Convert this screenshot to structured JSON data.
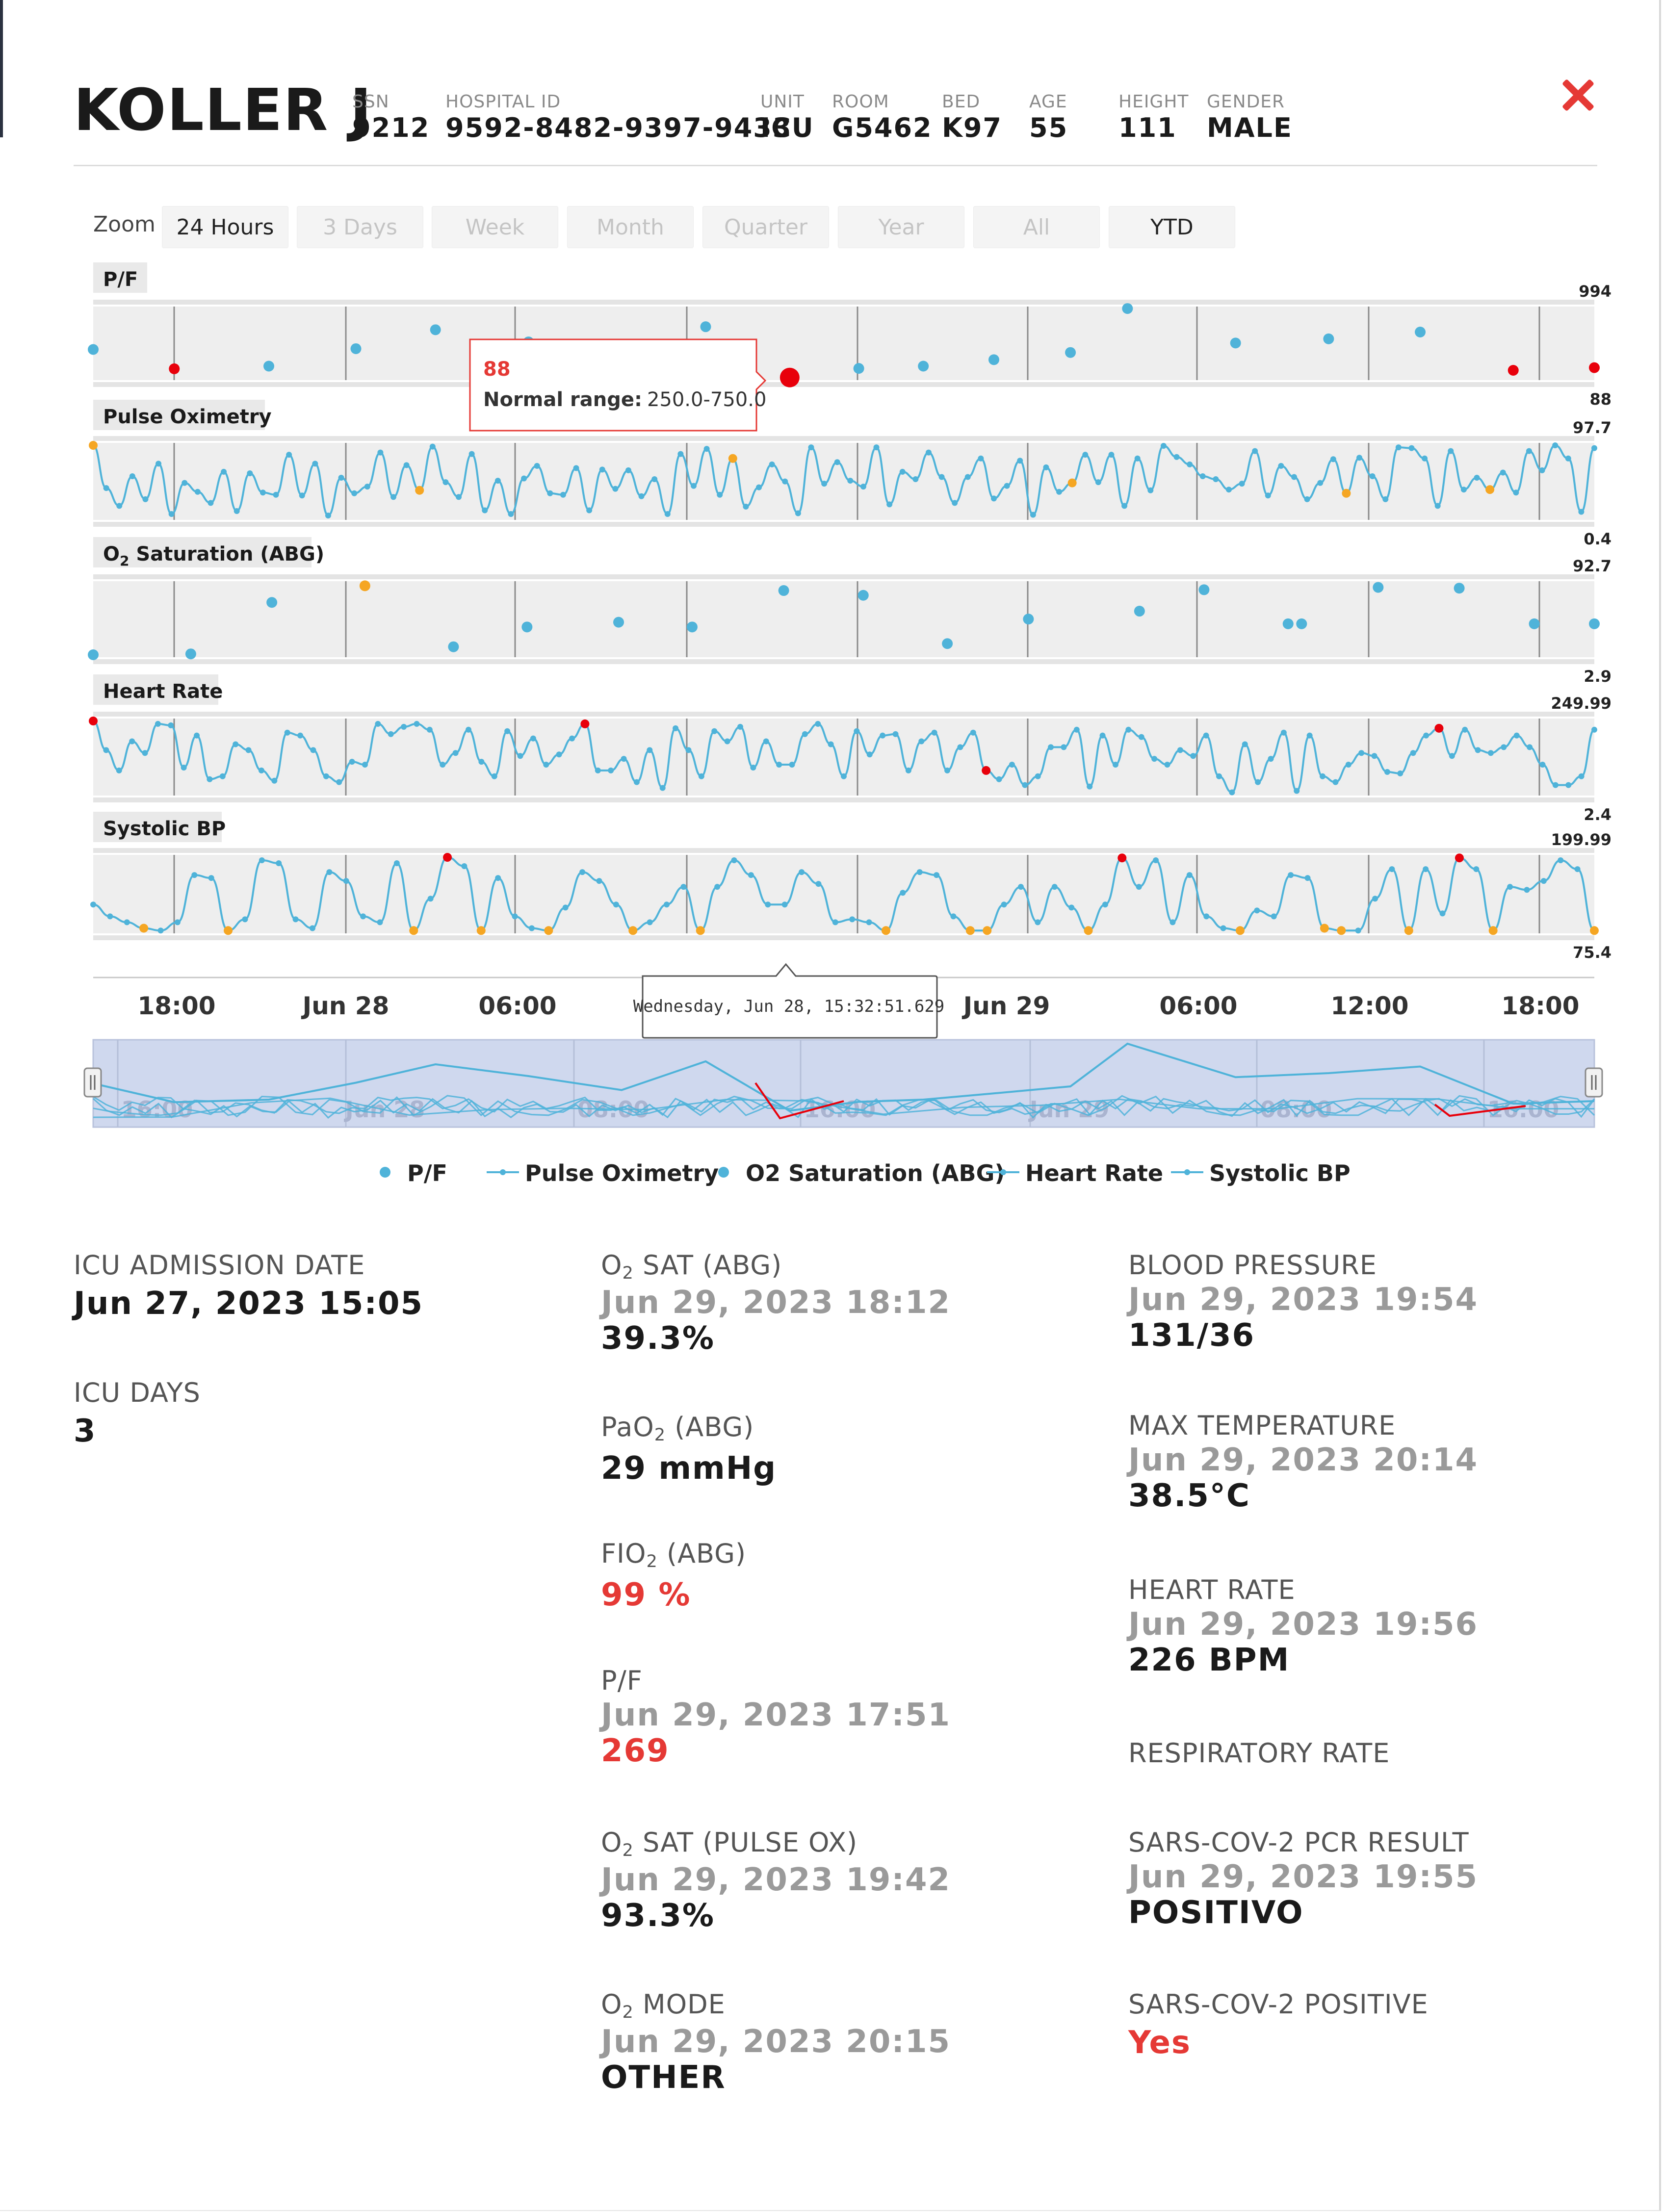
{
  "patient": {
    "name": "KOLLER J",
    "fields": [
      {
        "label": "SSN",
        "value": "9212"
      },
      {
        "label": "HOSPITAL ID",
        "value": "9592-8482-9397-9433"
      },
      {
        "label": "UNIT",
        "value": "ICU"
      },
      {
        "label": "ROOM",
        "value": "G5462"
      },
      {
        "label": "BED",
        "value": "K97"
      },
      {
        "label": "AGE",
        "value": "55"
      },
      {
        "label": "HEIGHT",
        "value": "111"
      },
      {
        "label": "GENDER",
        "value": "MALE"
      }
    ],
    "close_icon": "close-x-icon"
  },
  "zoom": {
    "label": "Zoom",
    "options": [
      "24 Hours",
      "3 Days",
      "Week",
      "Month",
      "Quarter",
      "Year",
      "All",
      "YTD"
    ],
    "enabled": [
      true,
      false,
      false,
      false,
      false,
      false,
      false,
      true
    ]
  },
  "chart_data": {
    "type": "line",
    "x_ticks": [
      "18:00",
      "Jun 28",
      "06:00",
      "12:00",
      "Jun 29",
      "06:00",
      "12:00",
      "18:00"
    ],
    "navigator_ticks": [
      "16:00",
      "Jun 28",
      "08:00",
      "16:00",
      "Jun 29",
      "08:00",
      "16:00"
    ],
    "colors": {
      "line": "#4fb3d9",
      "high": "#e8000b",
      "low": "#f5a623",
      "panel": "#eeeeee",
      "navigator": "#cfd8ee"
    },
    "series": [
      {
        "name": "P/F",
        "kind": "scatter",
        "max_label": "994",
        "min_label": "88",
        "ymin": 88,
        "ymax": 994,
        "x": [
          0,
          0.054,
          0.117,
          0.175,
          0.228,
          0.29,
          0.352,
          0.408,
          0.464,
          0.51,
          0.553,
          0.6,
          0.651,
          0.689,
          0.761,
          0.823,
          0.884,
          0.946,
          1
        ],
        "y": [
          460,
          205,
          240,
          470,
          720,
          560,
          370,
          760,
          90,
          210,
          240,
          325,
          420,
          1000,
          545,
          600,
          690,
          185,
          220
        ],
        "flags": [
          "n",
          "h",
          "n",
          "n",
          "n",
          "n",
          "n",
          "n",
          "h",
          "n",
          "n",
          "n",
          "n",
          "n",
          "n",
          "n",
          "n",
          "h",
          "h"
        ]
      },
      {
        "name": "Pulse Oximetry",
        "kind": "line",
        "max_label": "97.7",
        "min_label": "0.4",
        "ymin": 0.4,
        "ymax": 97.7,
        "y": [
          97.7,
          40,
          16,
          56,
          25,
          73,
          5,
          47,
          35,
          20,
          62,
          9,
          60,
          34,
          31,
          85,
          30,
          73,
          3,
          54,
          33,
          42,
          88,
          28,
          71,
          37,
          96,
          48,
          28,
          86,
          10,
          50,
          5,
          53,
          70,
          33,
          31,
          67,
          10,
          65,
          39,
          64,
          29,
          52,
          5,
          86,
          43,
          93,
          31,
          80,
          15,
          41,
          72,
          49,
          6,
          95,
          46,
          75,
          50,
          42,
          95,
          18,
          62,
          52,
          88,
          55,
          20,
          55,
          80,
          26,
          43,
          77,
          4,
          68,
          35,
          47,
          85,
          48,
          85,
          16,
          80,
          37,
          97,
          82,
          72,
          56,
          52,
          38,
          46,
          90,
          30,
          70,
          55,
          25,
          47,
          79,
          33,
          81,
          56,
          25,
          95,
          94,
          80,
          16,
          90,
          38,
          54,
          38,
          61,
          34,
          90,
          64,
          97.7,
          80,
          8,
          94
        ],
        "flags_low": [
          0,
          25,
          49,
          75,
          96,
          107
        ]
      },
      {
        "name": "O2 Saturation (ABG)",
        "kind": "scatter",
        "max_label": "92.7",
        "min_label": "2.9",
        "ymin": 2.9,
        "ymax": 92.7,
        "x": [
          0,
          0.065,
          0.119,
          0.181,
          0.24,
          0.289,
          0.35,
          0.399,
          0.46,
          0.513,
          0.569,
          0.623,
          0.697,
          0.74,
          0.796,
          0.805,
          0.856,
          0.91,
          0.96,
          1
        ],
        "y": [
          2.9,
          4,
          69,
          90,
          13,
          38,
          44,
          38,
          84,
          78,
          17,
          48,
          58,
          85,
          42,
          42,
          88,
          87,
          42,
          42
        ],
        "flags": [
          "n",
          "n",
          "n",
          "l",
          "n",
          "n",
          "n",
          "n",
          "n",
          "n",
          "n",
          "n",
          "n",
          "n",
          "n",
          "n",
          "n",
          "n",
          "n",
          "n"
        ]
      },
      {
        "name": "Heart Rate",
        "kind": "line",
        "max_label": "249.99",
        "min_label": "2.4",
        "ymin": 2.4,
        "ymax": 249.99,
        "y": [
          249.99,
          150,
          80,
          180,
          140,
          240,
          235,
          90,
          200,
          50,
          60,
          170,
          150,
          80,
          45,
          210,
          200,
          150,
          60,
          40,
          110,
          100,
          240,
          205,
          230,
          240,
          220,
          100,
          140,
          220,
          110,
          60,
          215,
          130,
          190,
          100,
          135,
          190,
          240,
          80,
          80,
          120,
          40,
          150,
          20,
          225,
          150,
          60,
          215,
          180,
          230,
          90,
          180,
          100,
          100,
          205,
          240,
          170,
          60,
          215,
          135,
          200,
          205,
          80,
          180,
          210,
          80,
          160,
          210,
          80,
          50,
          100,
          30,
          60,
          160,
          160,
          220,
          25,
          200,
          100,
          220,
          195,
          120,
          100,
          150,
          130,
          200,
          60,
          5,
          170,
          40,
          120,
          210,
          10,
          200,
          60,
          40,
          100,
          140,
          130,
          75,
          70,
          140,
          200,
          225,
          130,
          220,
          150,
          140,
          160,
          200,
          160,
          100,
          30,
          30,
          60,
          220
        ],
        "flags_high": [
          0,
          38,
          69,
          104
        ],
        "flags_low": []
      },
      {
        "name": "Systolic BP",
        "kind": "line",
        "max_label": "199.99",
        "min_label": "75.4",
        "ymin": 75.4,
        "ymax": 199.99,
        "y": [
          120,
          100,
          90,
          80,
          76,
          90,
          170,
          165,
          76,
          95,
          195,
          190,
          95,
          80,
          175,
          160,
          100,
          90,
          190,
          76,
          130,
          199.99,
          185,
          76,
          165,
          100,
          80,
          76,
          115,
          175,
          160,
          120,
          76,
          90,
          120,
          150,
          76,
          150,
          195,
          170,
          120,
          120,
          175,
          155,
          90,
          95,
          90,
          76,
          140,
          175,
          170,
          100,
          76,
          76,
          120,
          150,
          90,
          150,
          115,
          76,
          120,
          199,
          150,
          195,
          90,
          170,
          100,
          80,
          76,
          110,
          100,
          170,
          165,
          80,
          76,
          76,
          130,
          180,
          76,
          180,
          105,
          199,
          180,
          76,
          150,
          145,
          160,
          195,
          180,
          76
        ],
        "flags_high": [
          21,
          61,
          81
        ],
        "flags_low": [
          3,
          8,
          19,
          23,
          27,
          32,
          36,
          47,
          52,
          53,
          59,
          68,
          73,
          74,
          78,
          83,
          89
        ]
      }
    ]
  },
  "tooltips": {
    "pf_value": "88",
    "pf_range_label": "Normal range:",
    "pf_range_value": "250.0-750.0",
    "time_tooltip": "Wednesday, Jun 28, 15:32:51.629"
  },
  "legend": [
    "P/F",
    "Pulse Oximetry",
    "O2 Saturation (ABG)",
    "Heart Rate",
    "Systolic BP"
  ],
  "details": {
    "left": [
      {
        "label": "ICU ADMISSION DATE",
        "value": "Jun 27, 2023 15:05"
      },
      {
        "label": "ICU DAYS",
        "value": "3"
      }
    ],
    "mid": [
      {
        "label_pre": "O",
        "label_sub": "2",
        "label_post": " SAT (ABG)",
        "date": "Jun 29, 2023 18:12",
        "value": "39.3%",
        "red": false
      },
      {
        "label_pre": "PaO",
        "label_sub": "2",
        "label_post": " (ABG)",
        "date": "",
        "value": "29 mmHg",
        "red": false
      },
      {
        "label_pre": "FIO",
        "label_sub": "2",
        "label_post": " (ABG)",
        "date": "",
        "value": "99 %",
        "red": true
      },
      {
        "label_pre": "P/F",
        "label_sub": "",
        "label_post": "",
        "date": "Jun 29, 2023 17:51",
        "value": "269",
        "red": true
      },
      {
        "label_pre": "O",
        "label_sub": "2",
        "label_post": " SAT (PULSE OX)",
        "date": "Jun 29, 2023 19:42",
        "value": "93.3%",
        "red": false
      },
      {
        "label_pre": "O",
        "label_sub": "2",
        "label_post": " MODE",
        "date": "Jun 29, 2023 20:15",
        "value": "OTHER",
        "red": false
      }
    ],
    "right": [
      {
        "label": "BLOOD PRESSURE",
        "date": "Jun 29, 2023 19:54",
        "value": "131/36",
        "red": false
      },
      {
        "label": "MAX TEMPERATURE",
        "date": "Jun 29, 2023 20:14",
        "value": "38.5°C",
        "red": false
      },
      {
        "label": "HEART RATE",
        "date": "Jun 29, 2023 19:56",
        "value": "226 BPM",
        "red": false
      },
      {
        "label": "RESPIRATORY RATE",
        "date": "",
        "value": "",
        "red": false
      },
      {
        "label": "SARS-COV-2 PCR RESULT",
        "date": "Jun 29, 2023 19:55",
        "value": "POSITIVO",
        "red": false
      },
      {
        "label": "SARS-COV-2 POSITIVE",
        "date": "",
        "value": "Yes",
        "red": true
      }
    ]
  }
}
